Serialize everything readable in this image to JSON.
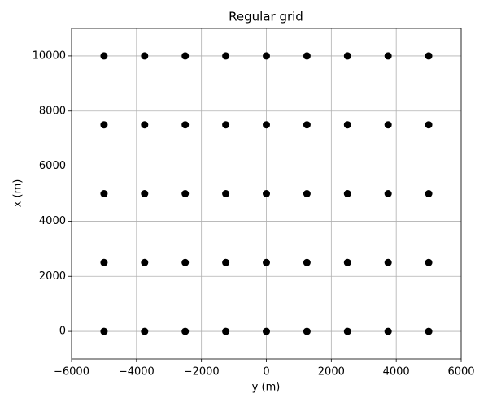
{
  "chart_data": {
    "type": "scatter",
    "title": "Regular grid",
    "x_label": "y (m)",
    "y_label": "x (m)",
    "color": "#000000",
    "grid": true,
    "x": [
      -5000,
      -3750,
      -2500,
      -1250,
      0,
      1250,
      2500,
      3750,
      5000,
      -5000,
      -3750,
      -2500,
      -1250,
      0,
      1250,
      2500,
      3750,
      5000,
      -5000,
      -3750,
      -2500,
      -1250,
      0,
      1250,
      2500,
      3750,
      5000,
      -5000,
      -3750,
      -2500,
      -1250,
      0,
      1250,
      2500,
      3750,
      5000,
      -5000,
      -3750,
      -2500,
      -1250,
      0,
      1250,
      2500,
      3750,
      5000
    ],
    "values": [
      0,
      0,
      0,
      0,
      0,
      0,
      0,
      0,
      0,
      2500,
      2500,
      2500,
      2500,
      2500,
      2500,
      2500,
      2500,
      2500,
      5000,
      5000,
      5000,
      5000,
      5000,
      5000,
      5000,
      5000,
      5000,
      7500,
      7500,
      7500,
      7500,
      7500,
      7500,
      7500,
      7500,
      7500,
      10000,
      10000,
      10000,
      10000,
      10000,
      10000,
      10000,
      10000,
      10000
    ],
    "xlim": [
      -6000,
      6000
    ],
    "xticks": [
      {
        "value": -6000,
        "label": "−6000"
      },
      {
        "value": -4000,
        "label": "−4000"
      },
      {
        "value": -2000,
        "label": "−2000"
      },
      0,
      2000,
      4000,
      6000
    ],
    "ylim": [
      -1000,
      11000
    ],
    "yticks": [
      0,
      2000,
      4000,
      6000,
      8000,
      10000
    ]
  }
}
